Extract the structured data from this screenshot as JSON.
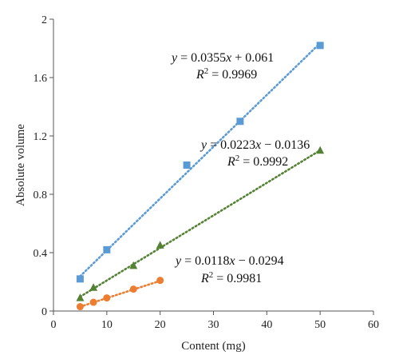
{
  "chart_data": {
    "type": "scatter",
    "xlabel": "Content (mg)",
    "ylabel": "Absolute volume",
    "xlim": [
      0,
      60
    ],
    "ylim": [
      0,
      2
    ],
    "xticks": [
      "0",
      "10",
      "20",
      "30",
      "40",
      "50",
      "60"
    ],
    "yticks": [
      "0",
      "0.4",
      "0.8",
      "1.2",
      "1.6",
      "2"
    ],
    "grid": false,
    "legend": "none",
    "series": [
      {
        "marker": "square",
        "color": "#5b9bd5",
        "points": [
          {
            "x": 5,
            "y": 0.22
          },
          {
            "x": 10,
            "y": 0.42
          },
          {
            "x": 25,
            "y": 1.0
          },
          {
            "x": 35,
            "y": 1.3
          },
          {
            "x": 50,
            "y": 1.82
          }
        ],
        "trendline": {
          "slope": 0.0355,
          "intercept": 0.061,
          "equation_parts": [
            "y",
            " = 0.0355",
            "x",
            " + 0.061"
          ],
          "r2_label": "R",
          "r2_value": " = 0.9969"
        }
      },
      {
        "marker": "triangle",
        "color": "#548235",
        "points": [
          {
            "x": 5,
            "y": 0.09
          },
          {
            "x": 7.5,
            "y": 0.16
          },
          {
            "x": 15,
            "y": 0.31
          },
          {
            "x": 20,
            "y": 0.45
          },
          {
            "x": 50,
            "y": 1.1
          }
        ],
        "trendline": {
          "slope": 0.0223,
          "intercept": -0.0136,
          "equation_parts": [
            "y",
            " = 0.0223",
            "x",
            " − 0.0136"
          ],
          "r2_label": "R",
          "r2_value": " = 0.9992"
        }
      },
      {
        "marker": "circle",
        "color": "#ed7d31",
        "points": [
          {
            "x": 5,
            "y": 0.03
          },
          {
            "x": 7.5,
            "y": 0.06
          },
          {
            "x": 10,
            "y": 0.09
          },
          {
            "x": 15,
            "y": 0.15
          },
          {
            "x": 20,
            "y": 0.21
          }
        ],
        "trendline": {
          "slope": 0.0118,
          "intercept": -0.0294,
          "equation_parts": [
            "y",
            " = 0.0118",
            "x",
            " − 0.0294"
          ],
          "r2_label": "R",
          "r2_value": " = 0.9981"
        }
      }
    ]
  }
}
